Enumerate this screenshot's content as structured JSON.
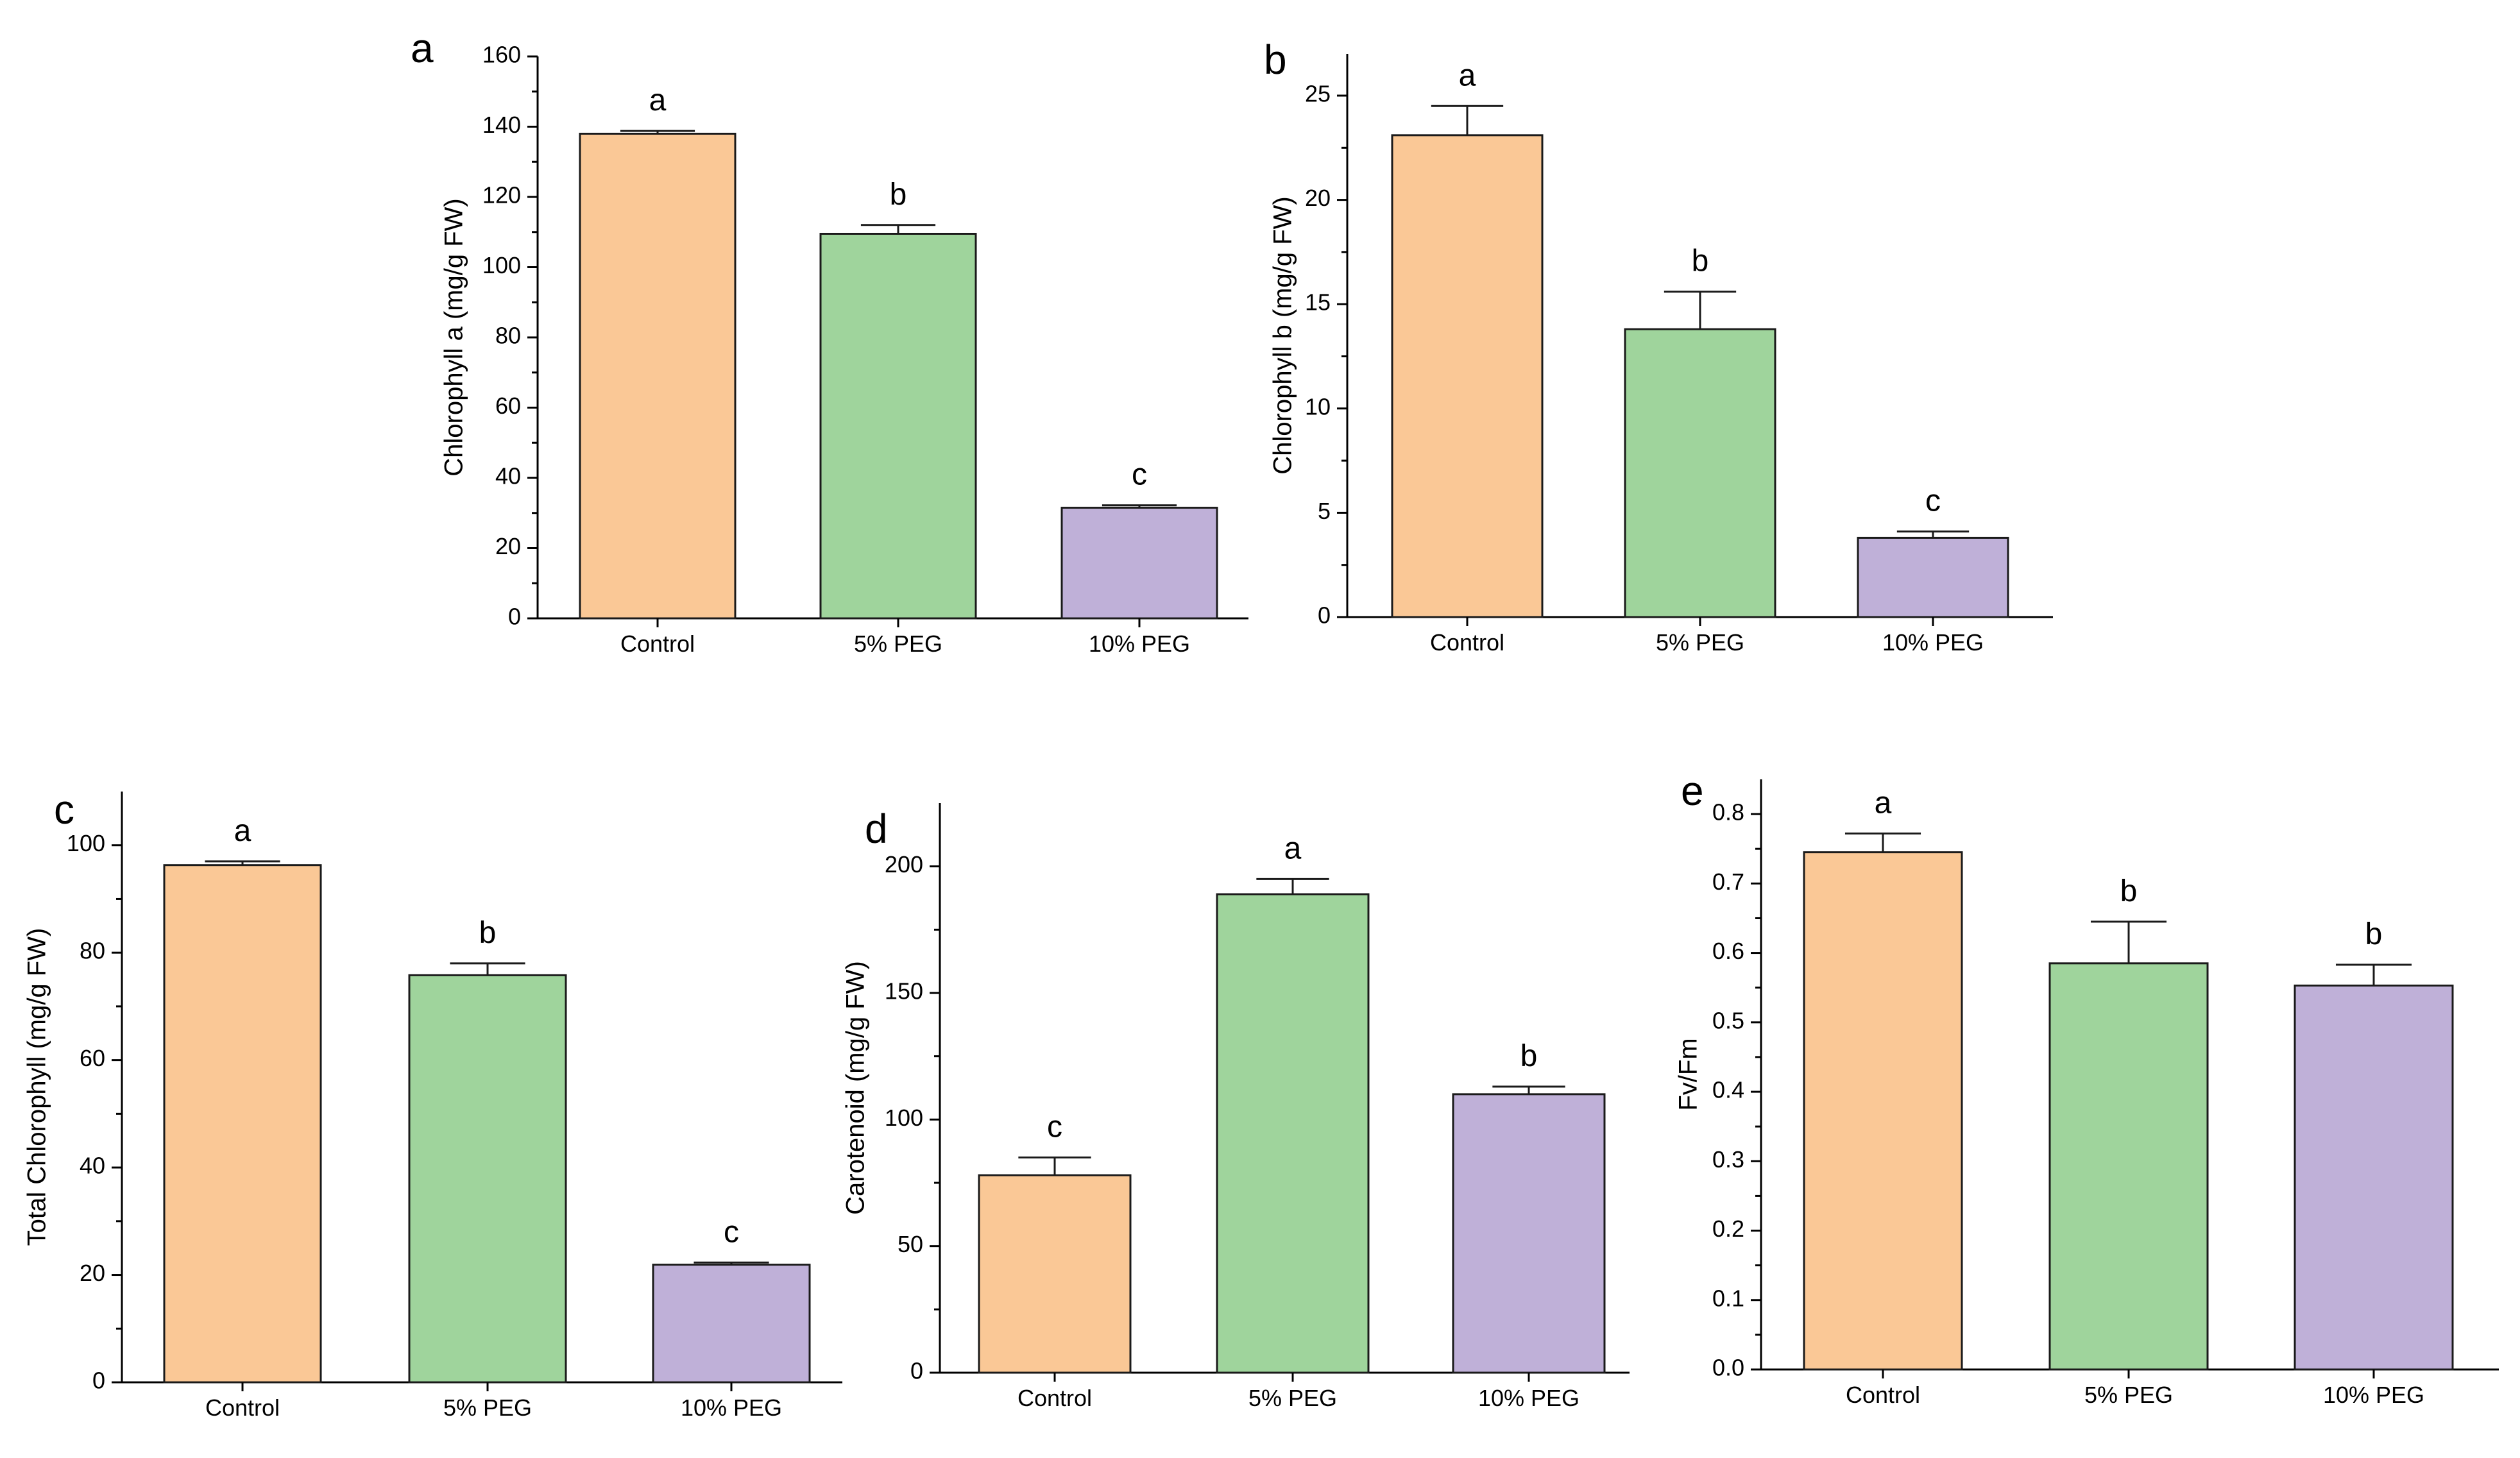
{
  "figure": {
    "colors": {
      "Control": "#fac896",
      "5% PEG": "#9fd49c",
      "10% PEG": "#bfb0d8"
    }
  },
  "chart_data": [
    {
      "panel": "a",
      "type": "bar",
      "title": "",
      "ylabel": "Chlorophyll a (mg/g FW)",
      "xlabel": "",
      "categories": [
        "Control",
        "5% PEG",
        "10% PEG"
      ],
      "values": [
        138,
        109.5,
        31.5
      ],
      "errors": [
        0.8,
        2.5,
        0.7
      ],
      "significance": [
        "a",
        "b",
        "c"
      ],
      "ylim": [
        0,
        160
      ],
      "yticks": [
        0,
        20,
        40,
        60,
        80,
        100,
        120,
        140,
        160
      ],
      "minor_ticks": true,
      "grid": false
    },
    {
      "panel": "b",
      "type": "bar",
      "title": "",
      "ylabel": "Chlorophyll b (mg/g FW)",
      "xlabel": "",
      "categories": [
        "Control",
        "5% PEG",
        "10% PEG"
      ],
      "values": [
        23.1,
        13.8,
        3.8
      ],
      "errors": [
        1.4,
        1.8,
        0.3
      ],
      "significance": [
        "a",
        "b",
        "c"
      ],
      "ylim": [
        0,
        27
      ],
      "yticks": [
        0,
        5,
        10,
        15,
        20,
        25
      ],
      "minor_ticks": true,
      "grid": false
    },
    {
      "panel": "c",
      "type": "bar",
      "title": "",
      "ylabel": "Total Chlorophyll (mg/g FW)",
      "xlabel": "",
      "categories": [
        "Control",
        "5% PEG",
        "10% PEG"
      ],
      "values": [
        96.3,
        75.8,
        21.9
      ],
      "errors": [
        0.7,
        2.2,
        0.4
      ],
      "significance": [
        "a",
        "b",
        "c"
      ],
      "ylim": [
        0,
        110
      ],
      "yticks": [
        0,
        20,
        40,
        60,
        80,
        100
      ],
      "minor_ticks": true,
      "grid": false
    },
    {
      "panel": "d",
      "type": "bar",
      "title": "",
      "ylabel": "Carotenoid (mg/g FW)",
      "xlabel": "",
      "categories": [
        "Control",
        "5% PEG",
        "10% PEG"
      ],
      "values": [
        78,
        189,
        110
      ],
      "errors": [
        7,
        6,
        3
      ],
      "significance": [
        "c",
        "a",
        "b"
      ],
      "ylim": [
        0,
        225
      ],
      "yticks": [
        0,
        50,
        100,
        150,
        200
      ],
      "minor_ticks": true,
      "grid": false
    },
    {
      "panel": "e",
      "type": "bar",
      "title": "",
      "ylabel": "Fv/Fm",
      "xlabel": "",
      "categories": [
        "Control",
        "5% PEG",
        "10% PEG"
      ],
      "values": [
        0.745,
        0.585,
        0.553
      ],
      "errors": [
        0.027,
        0.06,
        0.03
      ],
      "significance": [
        "a",
        "b",
        "b"
      ],
      "ylim": [
        0,
        0.85
      ],
      "yticks": [
        "0.0",
        "0.1",
        "0.2",
        "0.3",
        "0.4",
        "0.5",
        "0.6",
        "0.7",
        "0.8"
      ],
      "minor_ticks": true,
      "grid": false
    }
  ]
}
